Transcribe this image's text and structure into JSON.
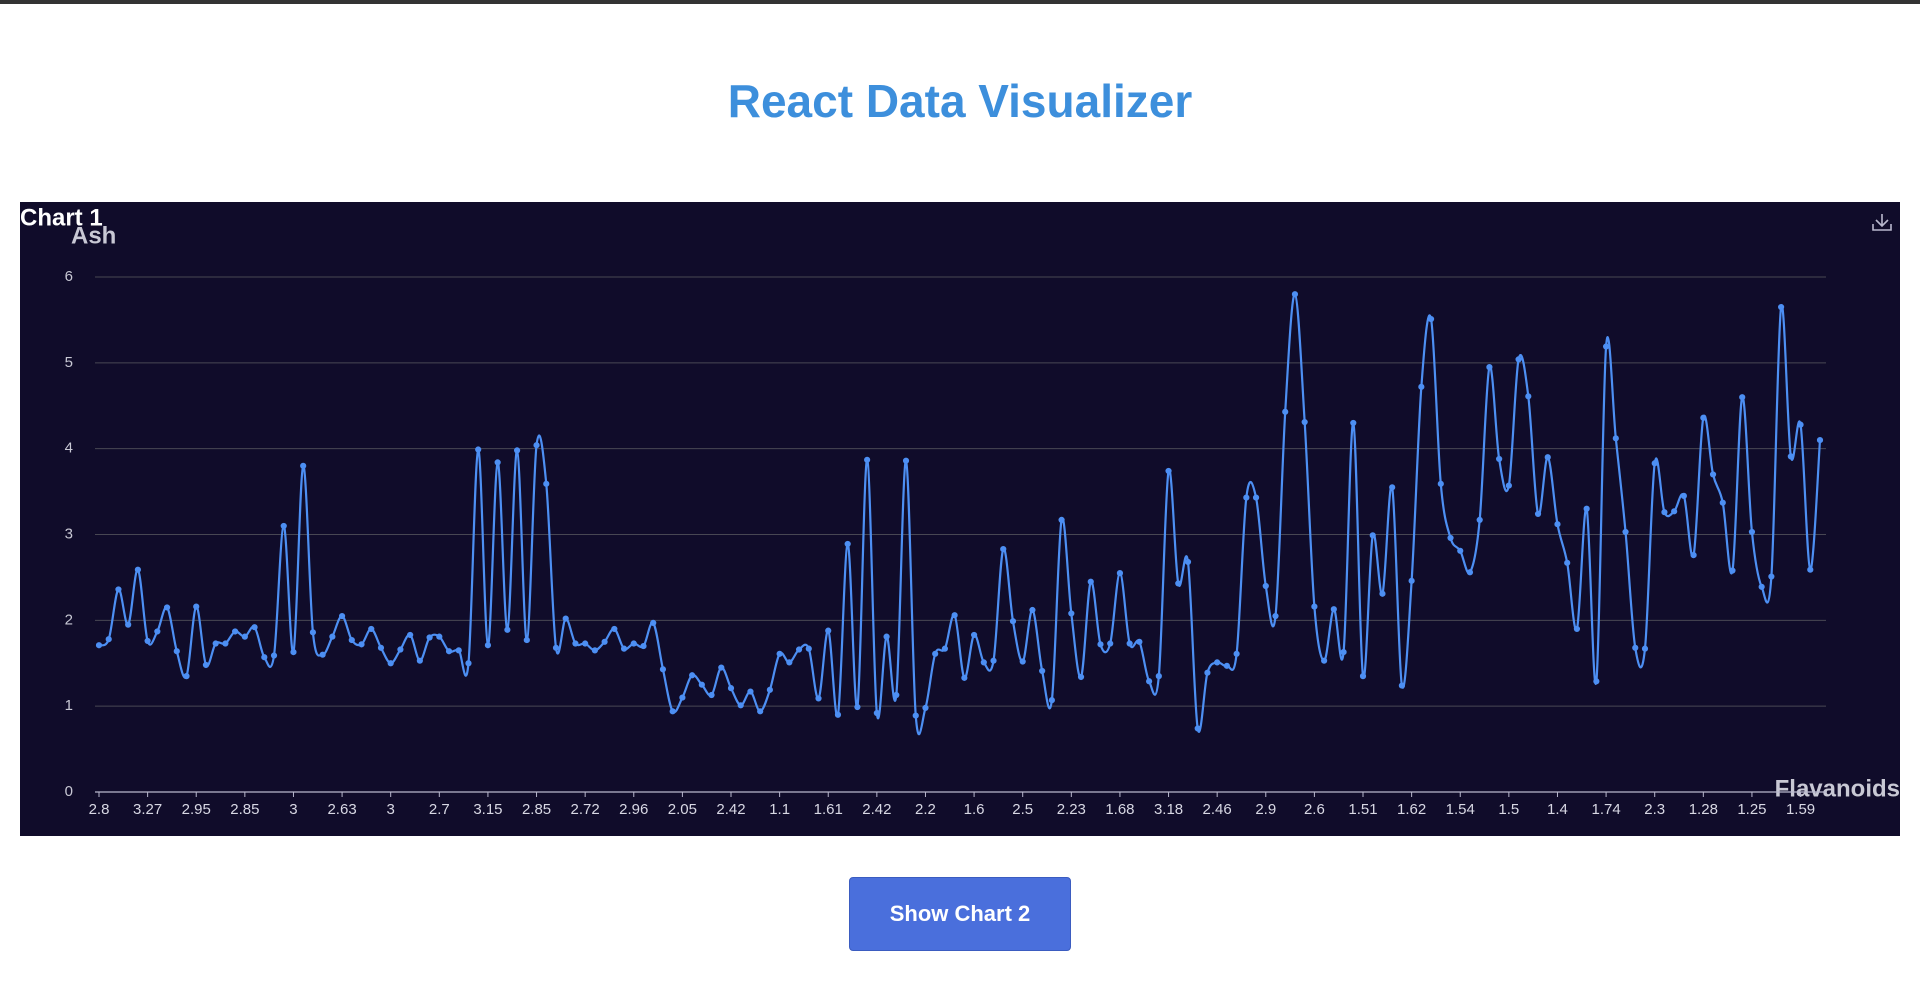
{
  "page_title": "React Data Visualizer",
  "button": "Show Chart 2",
  "chart_data": {
    "type": "line",
    "title": "Chart 1",
    "y_label": "Ash",
    "x_label": "Flavanoids",
    "color": "#4d8ff3",
    "smooth": true,
    "grid": true,
    "ylim": [
      0,
      6
    ],
    "yticks": [
      0,
      1,
      2,
      3,
      4,
      5,
      6
    ],
    "categories": [
      "2.8",
      null,
      null,
      null,
      null,
      "3.27",
      null,
      null,
      null,
      null,
      "2.95",
      null,
      null,
      null,
      null,
      "2.85",
      null,
      null,
      null,
      null,
      "3",
      null,
      null,
      null,
      null,
      "2.63",
      null,
      null,
      null,
      null,
      "3",
      null,
      null,
      null,
      null,
      "2.7",
      null,
      null,
      null,
      null,
      "3.15",
      null,
      null,
      null,
      null,
      "2.85",
      null,
      null,
      null,
      null,
      "2.72",
      null,
      null,
      null,
      null,
      "2.96",
      null,
      null,
      null,
      null,
      "2.05",
      null,
      null,
      null,
      null,
      "2.42",
      null,
      null,
      null,
      null,
      "1.1",
      null,
      null,
      null,
      null,
      "1.61",
      null,
      null,
      null,
      null,
      "2.42",
      null,
      null,
      null,
      null,
      "2.2",
      null,
      null,
      null,
      null,
      "1.6",
      null,
      null,
      null,
      null,
      "2.5",
      null,
      null,
      null,
      null,
      "2.23",
      null,
      null,
      null,
      null,
      "1.68",
      null,
      null,
      null,
      null,
      "3.18",
      null,
      null,
      null,
      null,
      "2.46",
      null,
      null,
      null,
      null,
      "2.9",
      null,
      null,
      null,
      null,
      "2.6",
      null,
      null,
      null,
      null,
      "1.51",
      null,
      null,
      null,
      null,
      "1.62",
      null,
      null,
      null,
      null,
      "1.54",
      null,
      null,
      null,
      null,
      "1.5",
      null,
      null,
      null,
      null,
      "1.4",
      null,
      null,
      null,
      null,
      "1.74",
      null,
      null,
      null,
      null,
      "2.3",
      null,
      null,
      null,
      null,
      "1.28",
      null,
      null,
      null,
      null,
      "1.25",
      null,
      null,
      null,
      null,
      "1.59",
      null,
      null
    ],
    "values": [
      1.71,
      1.78,
      2.36,
      1.95,
      2.59,
      1.76,
      1.87,
      2.15,
      1.64,
      1.35,
      2.16,
      1.48,
      1.73,
      1.73,
      1.87,
      1.81,
      1.92,
      1.57,
      1.59,
      3.1,
      1.63,
      3.8,
      1.86,
      1.6,
      1.81,
      2.05,
      1.77,
      1.72,
      1.9,
      1.68,
      1.5,
      1.66,
      1.83,
      1.53,
      1.8,
      1.81,
      1.64,
      1.65,
      1.5,
      3.99,
      1.71,
      3.84,
      1.89,
      3.98,
      1.77,
      4.04,
      3.59,
      1.68,
      2.02,
      1.73,
      1.73,
      1.65,
      1.75,
      1.9,
      1.67,
      1.73,
      1.7,
      1.97,
      1.43,
      0.94,
      1.1,
      1.36,
      1.25,
      1.13,
      1.45,
      1.21,
      1.01,
      1.17,
      0.94,
      1.19,
      1.61,
      1.51,
      1.66,
      1.67,
      1.09,
      1.88,
      0.9,
      2.89,
      0.99,
      3.87,
      0.92,
      1.81,
      1.13,
      3.86,
      0.89,
      0.98,
      1.61,
      1.67,
      2.06,
      1.33,
      1.83,
      1.51,
      1.53,
      2.83,
      1.99,
      1.52,
      2.12,
      1.41,
      1.07,
      3.17,
      2.08,
      1.34,
      2.45,
      1.72,
      1.73,
      2.55,
      1.73,
      1.75,
      1.29,
      1.35,
      3.74,
      2.43,
      2.68,
      0.74,
      1.39,
      1.51,
      1.47,
      1.61,
      3.43,
      3.43,
      2.4,
      2.05,
      4.43,
      5.8,
      4.31,
      2.16,
      1.53,
      2.13,
      1.63,
      4.3,
      1.35,
      2.99,
      2.31,
      3.55,
      1.24,
      2.46,
      4.72,
      5.51,
      3.59,
      2.96,
      2.81,
      2.56,
      3.17,
      4.95,
      3.88,
      3.57,
      5.04,
      4.61,
      3.24,
      3.9,
      3.12,
      2.67,
      1.9,
      3.3,
      1.29,
      5.19,
      4.12,
      3.03,
      1.68,
      1.67,
      3.83,
      3.26,
      3.27,
      3.45,
      2.76,
      4.36,
      3.7,
      3.37,
      2.58,
      4.6,
      3.03,
      2.39,
      2.51,
      5.65,
      3.91,
      4.28,
      2.59,
      4.1
    ]
  }
}
